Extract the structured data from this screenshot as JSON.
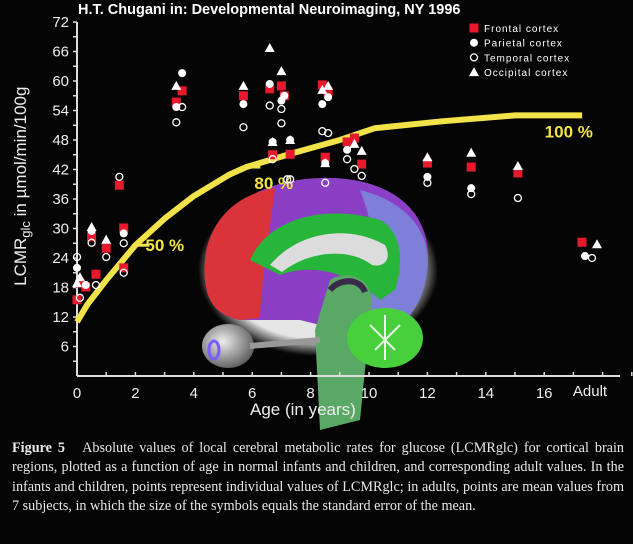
{
  "header": {
    "title": "H.T. Chugani in: Developmental Neuroimaging, NY 1996"
  },
  "chart_data": {
    "type": "scatter",
    "title": "H.T. Chugani in: Developmental Neuroimaging, NY 1996",
    "xlabel": "Age (in years)",
    "ylabel_main": "LCMR",
    "ylabel_sub": "glc",
    "ylabel_rest": " in µmol/min/100g",
    "xlim": [
      0,
      16
    ],
    "ylim": [
      0,
      72
    ],
    "xticks": [
      "0",
      "2",
      "4",
      "6",
      "8",
      "10",
      "12",
      "14",
      "16"
    ],
    "xtick_values": [
      0,
      2,
      4,
      6,
      8,
      10,
      12,
      14,
      16
    ],
    "adult_label": "Adult",
    "yticks": [
      "6",
      "12",
      "18",
      "24",
      "30",
      "36",
      "42",
      "48",
      "54",
      "60",
      "66",
      "72"
    ],
    "ytick_values": [
      6,
      12,
      18,
      24,
      30,
      36,
      42,
      48,
      54,
      60,
      66,
      72
    ],
    "grid": false,
    "legend_position": "top-right",
    "series": [
      {
        "name": "Frontal cortex",
        "marker": "filled-square",
        "color": "#e8192c",
        "points": [
          [
            0,
            15.5
          ],
          [
            0.1,
            18.9
          ],
          [
            0.3,
            18.1
          ],
          [
            0.5,
            28.3
          ],
          [
            0.65,
            20.7
          ],
          [
            1.0,
            26
          ],
          [
            1.45,
            38.8
          ],
          [
            1.6,
            30.1
          ],
          [
            1.6,
            22
          ],
          [
            3.4,
            55.7
          ],
          [
            3.6,
            58
          ],
          [
            5.7,
            57
          ],
          [
            6.6,
            58.4
          ],
          [
            6.7,
            45
          ],
          [
            7.0,
            59
          ],
          [
            7.1,
            57
          ],
          [
            7.3,
            45.1
          ],
          [
            8.4,
            59.2
          ],
          [
            8.5,
            44.5
          ],
          [
            8.6,
            57.8
          ],
          [
            9.25,
            47.6
          ],
          [
            9.5,
            48.4
          ],
          [
            9.75,
            43.1
          ],
          [
            12,
            43.3
          ],
          [
            13.5,
            42.5
          ],
          [
            15.1,
            41.3
          ]
        ],
        "adult": 27.2
      },
      {
        "name": "Parietal cortex",
        "marker": "filled-circle",
        "color": "#ffffff",
        "points": [
          [
            0,
            22
          ],
          [
            0.3,
            18.5
          ],
          [
            0.5,
            29.5
          ],
          [
            1.6,
            29
          ],
          [
            3.4,
            54.7
          ],
          [
            3.6,
            61.6
          ],
          [
            5.7,
            55.3
          ],
          [
            6.6,
            59.4
          ],
          [
            6.7,
            47.6
          ],
          [
            7.0,
            56
          ],
          [
            7.1,
            57
          ],
          [
            7.3,
            48
          ],
          [
            8.4,
            55.3
          ],
          [
            8.5,
            43.3
          ],
          [
            8.6,
            56.7
          ],
          [
            9.25,
            46
          ],
          [
            12,
            40.5
          ],
          [
            13.5,
            38.2
          ]
        ],
        "adult": 24.4
      },
      {
        "name": "Temporal cortex",
        "marker": "open-circle",
        "color": "#ffffff",
        "points": [
          [
            0,
            24.2
          ],
          [
            0.1,
            15.9
          ],
          [
            0.5,
            27.1
          ],
          [
            0.65,
            18.5
          ],
          [
            1.0,
            24.2
          ],
          [
            1.45,
            40.5
          ],
          [
            1.6,
            27
          ],
          [
            1.6,
            21
          ],
          [
            3.4,
            51.6
          ],
          [
            3.6,
            54.7
          ],
          [
            5.7,
            50.6
          ],
          [
            6.6,
            55
          ],
          [
            6.7,
            44.1
          ],
          [
            7.0,
            54.3
          ],
          [
            7.0,
            51.4
          ],
          [
            7.2,
            40
          ],
          [
            7.3,
            40
          ],
          [
            8.4,
            49.8
          ],
          [
            8.5,
            39.3
          ],
          [
            8.6,
            49.4
          ],
          [
            9.25,
            44.1
          ],
          [
            9.5,
            42.1
          ],
          [
            9.75,
            40.7
          ],
          [
            12,
            39.3
          ],
          [
            13.5,
            37
          ],
          [
            15.1,
            36.2
          ]
        ],
        "adult": 24
      },
      {
        "name": "Occipital cortex",
        "marker": "filled-triangle",
        "color": "#ffffff",
        "points": [
          [
            0,
            18.9
          ],
          [
            0.1,
            20.1
          ],
          [
            0.5,
            30.3
          ],
          [
            1.0,
            27.7
          ],
          [
            3.4,
            59
          ],
          [
            5.7,
            59
          ],
          [
            6.6,
            66.7
          ],
          [
            6.7,
            47.6
          ],
          [
            7.0,
            62
          ],
          [
            7.3,
            48
          ],
          [
            8.4,
            58.2
          ],
          [
            8.5,
            43.3
          ],
          [
            8.6,
            59
          ],
          [
            9.5,
            47.2
          ],
          [
            9.75,
            45.8
          ],
          [
            12,
            44.5
          ],
          [
            13.5,
            45.4
          ],
          [
            15.1,
            42.7
          ]
        ],
        "adult": 26.8
      }
    ],
    "reference_curve": {
      "color": "#f2e34a",
      "points": [
        [
          0,
          11
        ],
        [
          0.35,
          14.5
        ],
        [
          1,
          19.5
        ],
        [
          2,
          26.6
        ],
        [
          3,
          32
        ],
        [
          4,
          36.6
        ],
        [
          5.2,
          40.9
        ],
        [
          5.8,
          42.5
        ],
        [
          7.5,
          45.5
        ],
        [
          9,
          48
        ],
        [
          10.2,
          50.4
        ],
        [
          12.5,
          51.8
        ],
        [
          15,
          53
        ],
        [
          17.3,
          53
        ]
      ],
      "annotations": [
        {
          "label": "50 %",
          "x": 2,
          "y": 26.6
        },
        {
          "label": "80 %",
          "x": 5.8,
          "y": 42.5
        },
        {
          "label": "100 %",
          "x": 15.4,
          "y": 53
        }
      ]
    }
  },
  "caption": {
    "figure_label": "Figure 5",
    "text": "Absolute values of local cerebral metabolic rates for glucose (LCMRglc) for cortical brain regions, plotted as a function of age in normal infants and children, and corresponding adult values. In the infants and children, points represent individual values of LCMRglc; in adults, points are mean values from 7 subjects, in which the size of the symbols equals the standard error of the mean."
  },
  "image": {
    "subject": "brain-sagittal-section"
  }
}
